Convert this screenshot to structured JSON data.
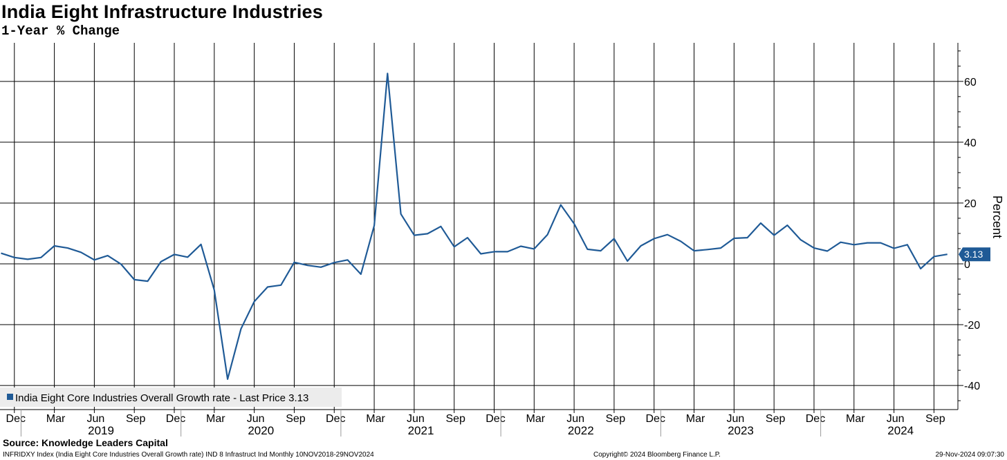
{
  "title": "India Eight Infrastructure Industries",
  "subtitle": "1-Year % Change",
  "source": "Source: Knowledge Leaders Capital",
  "footer": {
    "left": "INFRIDXY Index (India Eight Core Industries Overall Growth rate) IND 8 Infrastruct Ind  Monthly 10NOV2018-29NOV2024",
    "middle": "Copyright© 2024 Bloomberg Finance L.P.",
    "right": "29-Nov-2024 09:07:30"
  },
  "colors": {
    "series": "#1f5a96",
    "grid": "#000000",
    "legend_bg": "#ececec"
  },
  "chart_data": {
    "type": "line",
    "title": "India Eight Infrastructure Industries",
    "subtitle": "1-Year % Change",
    "ylabel": "Percent",
    "xlabel": "",
    "ylim": [
      -48,
      71
    ],
    "yticks": [
      60,
      40,
      20,
      0,
      -20,
      -40
    ],
    "grid": true,
    "legend_position": "bottom-left",
    "month_tick_labels": [
      "Dec",
      "Mar",
      "Jun",
      "Sep",
      "Dec",
      "Mar",
      "Jun",
      "Sep",
      "Dec",
      "Mar",
      "Jun",
      "Sep",
      "Dec",
      "Mar",
      "Jun",
      "Sep",
      "Dec",
      "Mar",
      "Jun",
      "Sep",
      "Dec",
      "Mar",
      "Jun",
      "Sep"
    ],
    "year_labels": [
      "2019",
      "2020",
      "2021",
      "2022",
      "2023",
      "2024"
    ],
    "last_value_label": "3.13",
    "series": [
      {
        "name": "India Eight Core Industries Overall Growth rate - Last Price 3.13",
        "start": "2018-11",
        "end": "2024-10",
        "values": [
          3.5,
          2.1,
          1.5,
          2.1,
          5.9,
          5.2,
          3.8,
          1.3,
          2.7,
          -0.1,
          -5.2,
          -5.7,
          0.7,
          3.1,
          2.2,
          6.4,
          -8.6,
          -37.9,
          -21.4,
          -12.4,
          -7.6,
          -7.0,
          0.5,
          -0.5,
          -1.1,
          0.4,
          1.3,
          -3.4,
          12.6,
          62.6,
          16.4,
          9.4,
          9.9,
          12.3,
          5.6,
          8.6,
          3.3,
          4.0,
          4.0,
          5.8,
          4.9,
          9.6,
          19.4,
          13.2,
          4.8,
          4.3,
          8.3,
          0.9,
          5.9,
          8.3,
          9.6,
          7.4,
          4.3,
          4.7,
          5.2,
          8.4,
          8.6,
          13.4,
          9.4,
          12.7,
          7.9,
          5.2,
          4.2,
          7.1,
          6.3,
          6.9,
          6.9,
          5.1,
          6.3,
          -1.6,
          2.4,
          3.13
        ]
      }
    ]
  }
}
